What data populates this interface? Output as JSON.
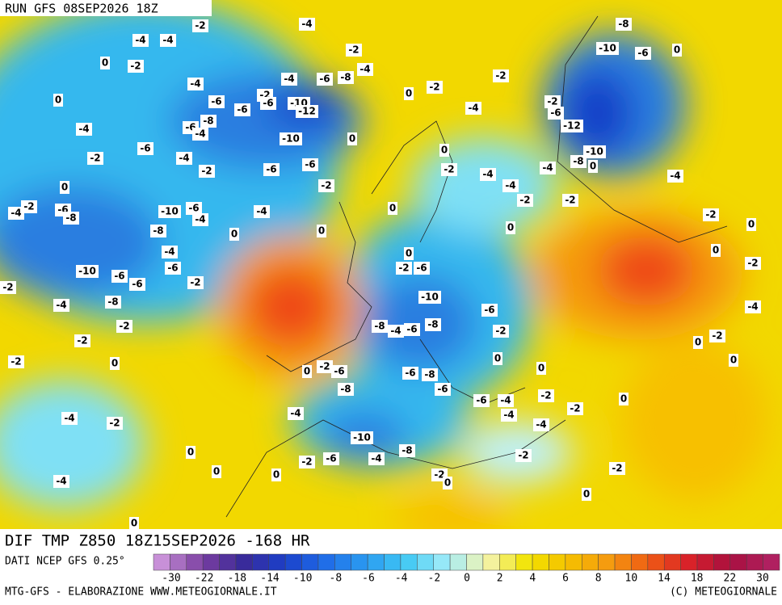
{
  "header": {
    "title": "RUN GFS 08SEP2026 18Z"
  },
  "footer": {
    "product": "DIF TMP Z850 18Z15SEP2026 -168 HR",
    "source": "DATI NCEP GFS 0.25°",
    "credit": "MTG-GFS - ELABORAZIONE WWW.METEOGIORNALE.IT",
    "copyright": "(C) METEOGIORNALE"
  },
  "colorbar": {
    "ticks": [
      -30,
      -22,
      -18,
      -14,
      -10,
      -8,
      -6,
      -4,
      -2,
      0,
      2,
      4,
      6,
      8,
      10,
      14,
      18,
      22,
      30
    ]
  },
  "map": {
    "labels": [
      -4,
      -4,
      -2,
      -4,
      -8,
      0,
      -2,
      -2,
      -4,
      -10,
      -6,
      0,
      -4,
      -4,
      -6,
      -8,
      -2,
      -2,
      0,
      -6,
      -2,
      -6,
      -10,
      -12,
      0,
      -4,
      -2,
      -6,
      -4,
      -6,
      -8,
      -4,
      -6,
      -10,
      0,
      -12,
      -6,
      -2,
      -4,
      -2,
      -6,
      -6,
      0,
      -10,
      -8,
      0,
      -4,
      -2,
      -4,
      -4,
      0,
      -2,
      -4,
      -2,
      -4,
      -6,
      -8,
      -10,
      -6,
      -4,
      -4,
      0,
      -2,
      -2,
      -2,
      0,
      0,
      -8,
      0,
      0,
      -4,
      0,
      0,
      -2,
      -6,
      -2,
      -6,
      -10,
      -6,
      -6,
      -2,
      -2,
      -10,
      -4,
      -8,
      -4,
      -6,
      -2,
      -2,
      -8,
      -4,
      -6,
      -8,
      -2,
      -2,
      0,
      -2,
      0,
      0,
      0,
      0,
      -2,
      -6,
      -6,
      -8,
      0,
      -8,
      -6,
      -6,
      -4,
      -2,
      0,
      -2,
      -4,
      -4,
      -2,
      -4,
      -4,
      -10,
      -8,
      0,
      -2,
      -6,
      -4,
      -2,
      0,
      0,
      -2,
      0,
      -2,
      -4,
      0,
      0
    ]
  }
}
